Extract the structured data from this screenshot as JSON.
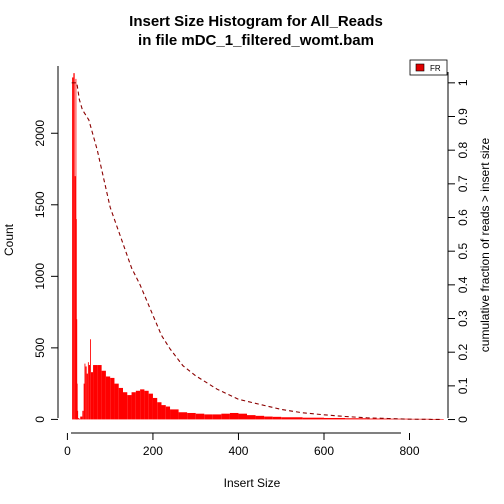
{
  "title_line1": "Insert Size Histogram for All_Reads",
  "title_line2": "in file mDC_1_filtered_womt.bam",
  "legend_label": "FR",
  "chart_data": {
    "type": "bar",
    "title": "Insert Size Histogram for All_Reads in file mDC_1_filtered_womt.bam",
    "xlabel": "Insert Size",
    "ylabel": "Count",
    "y2label": "cumulative fraction of reads > insert size",
    "xlim": [
      -22,
      890
    ],
    "ylim": [
      -95,
      2470
    ],
    "y2lim": [
      -0.04,
      1.05
    ],
    "xticks": [
      0,
      200,
      400,
      600,
      800
    ],
    "yticks": [
      0,
      500,
      1000,
      1500,
      2000
    ],
    "y2ticks": [
      0,
      0.1,
      0.2,
      0.3,
      0.4,
      0.5,
      0.6,
      0.7,
      0.8,
      0.9,
      1
    ],
    "grid": false,
    "legend_position": "top-right",
    "colors": {
      "histogram": "#ff0000",
      "cumulative": "#8b0000",
      "legend_fill": "#e00000"
    },
    "series": [
      {
        "name": "FR",
        "kind": "histogram",
        "x": [
          11,
          14,
          17,
          19,
          20,
          21,
          22,
          23,
          25,
          27,
          30,
          35,
          38,
          40,
          42,
          45,
          48,
          50,
          53,
          55,
          60,
          70,
          80,
          90,
          100,
          110,
          120,
          130,
          140,
          150,
          160,
          170,
          180,
          190,
          200,
          210,
          220,
          230,
          240,
          260,
          280,
          300,
          320,
          340,
          360,
          380,
          400,
          420,
          440,
          460,
          480,
          500,
          550,
          600,
          650,
          700,
          750,
          800,
          850,
          875
        ],
        "values": [
          2390,
          2420,
          1700,
          2380,
          1400,
          700,
          250,
          60,
          10,
          5,
          20,
          60,
          250,
          390,
          370,
          320,
          400,
          380,
          560,
          330,
          380,
          380,
          340,
          300,
          290,
          250,
          220,
          190,
          170,
          190,
          200,
          210,
          200,
          180,
          150,
          120,
          100,
          90,
          70,
          50,
          45,
          40,
          35,
          35,
          40,
          45,
          40,
          30,
          25,
          20,
          18,
          15,
          12,
          10,
          8,
          6,
          5,
          4,
          3,
          2
        ]
      },
      {
        "name": "",
        "kind": "cumulative",
        "axis": "right",
        "x": [
          10,
          22,
          28,
          35,
          50,
          70,
          100,
          150,
          170,
          200,
          220,
          240,
          270,
          300,
          350,
          400,
          450,
          500,
          550,
          600,
          650,
          700,
          750,
          800,
          875
        ],
        "values": [
          1.0,
          1.0,
          0.95,
          0.92,
          0.89,
          0.8,
          0.63,
          0.45,
          0.4,
          0.31,
          0.25,
          0.21,
          0.16,
          0.13,
          0.09,
          0.06,
          0.045,
          0.03,
          0.02,
          0.014,
          0.009,
          0.005,
          0.003,
          0.001,
          0.0
        ]
      }
    ]
  }
}
